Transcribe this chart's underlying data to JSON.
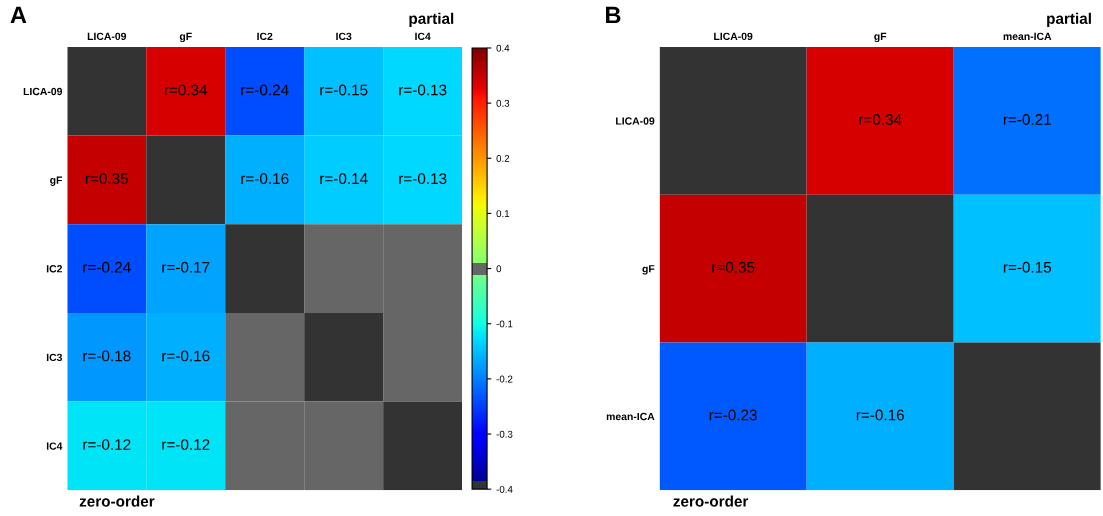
{
  "chart_data": [
    {
      "type": "heatmap",
      "title": "A",
      "categories": [
        "LICA-09",
        "gF",
        "IC2",
        "IC3",
        "IC4"
      ],
      "y_categories": [
        "LICA-09",
        "gF",
        "IC2",
        "IC3",
        "IC4"
      ],
      "cells": [
        [
          null,
          0.34,
          -0.24,
          -0.15,
          -0.13
        ],
        [
          0.35,
          null,
          -0.16,
          -0.14,
          -0.13
        ],
        [
          -0.24,
          -0.17,
          null,
          0,
          0
        ],
        [
          -0.18,
          -0.16,
          0,
          null,
          0
        ],
        [
          -0.12,
          -0.12,
          0,
          0,
          null
        ]
      ],
      "cell_labels": [
        [
          null,
          "r=0.34",
          "r=-0.24",
          "r=-0.15",
          "r=-0.13"
        ],
        [
          "r=0.35",
          null,
          "r=-0.16",
          "r=-0.14",
          "r=-0.13"
        ],
        [
          "r=-0.24",
          "r=-0.17",
          null,
          null,
          null
        ],
        [
          "r=-0.18",
          "r=-0.16",
          null,
          null,
          null
        ],
        [
          "r=-0.12",
          "r=-0.12",
          null,
          null,
          null
        ]
      ],
      "clim": [
        -0.4,
        0.4
      ],
      "cticks": [
        -0.4,
        -0.3,
        -0.2,
        -0.1,
        0,
        0.1,
        0.2,
        0.3,
        0.4
      ],
      "annotations": [
        "partial",
        "zero-order"
      ]
    },
    {
      "type": "heatmap",
      "title": "B",
      "categories": [
        "LICA-09",
        "gF",
        "mean-ICA"
      ],
      "y_categories": [
        "LICA-09",
        "gF",
        "mean-ICA"
      ],
      "cells": [
        [
          null,
          0.34,
          -0.21
        ],
        [
          0.35,
          null,
          -0.15
        ],
        [
          -0.23,
          -0.16,
          null
        ]
      ],
      "cell_labels": [
        [
          null,
          "r=0.34",
          "r=-0.21"
        ],
        [
          "r=0.35",
          null,
          "r=-0.15"
        ],
        [
          "r=-0.23",
          "r=-0.16",
          null
        ]
      ],
      "annotations": [
        "partial",
        "zero-order"
      ]
    }
  ]
}
